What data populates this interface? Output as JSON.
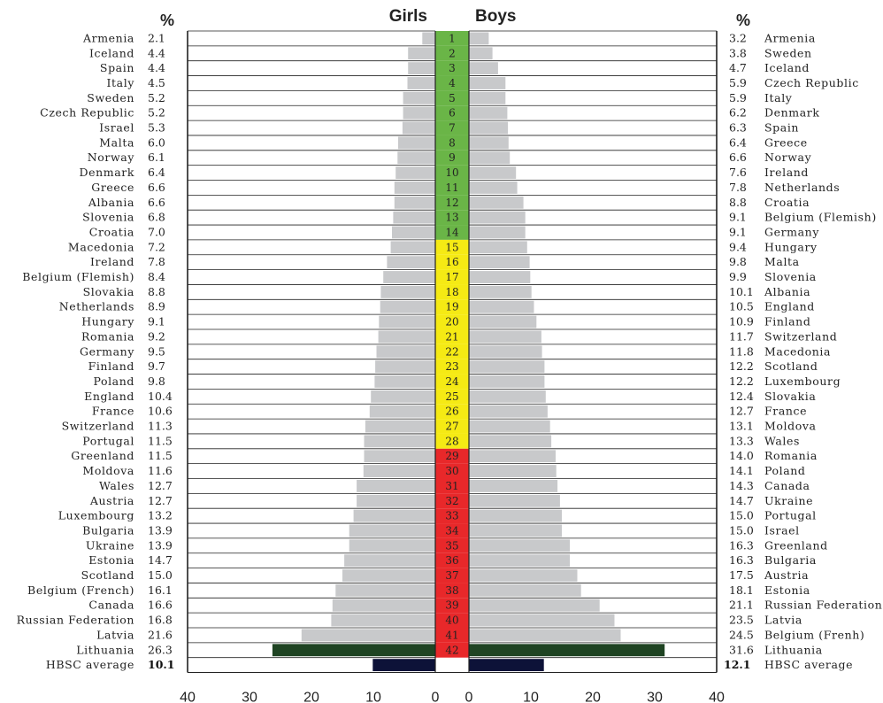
{
  "chart_data": {
    "type": "bar",
    "headers": {
      "left_unit": "%",
      "right_unit": "%",
      "girls": "Girls",
      "boys": "Boys"
    },
    "x_ticks_left": [
      "40",
      "30",
      "20",
      "10",
      "0"
    ],
    "x_ticks_right": [
      "0",
      "10",
      "20",
      "30",
      "40"
    ],
    "xlim": [
      0,
      40
    ],
    "rank_colors": {
      "green": "#6ab547",
      "yellow": "#f5ea14",
      "red": "#e8282a"
    },
    "bar_color": "#c8c9cb",
    "highlight_color": "#1f4423",
    "average_color": "#0d1238",
    "girls": {
      "countries": [
        "Armenia",
        "Iceland",
        "Spain",
        "Italy",
        "Sweden",
        "Czech Republic",
        "Israel",
        "Malta",
        "Norway",
        "Denmark",
        "Greece",
        "Albania",
        "Slovenia",
        "Croatia",
        "Macedonia",
        "Ireland",
        "Belgium (Flemish)",
        "Slovakia",
        "Netherlands",
        "Hungary",
        "Romania",
        "Germany",
        "Finland",
        "Poland",
        "England",
        "France",
        "Switzerland",
        "Portugal",
        "Greenland",
        "Moldova",
        "Wales",
        "Austria",
        "Luxembourg",
        "Bulgaria",
        "Ukraine",
        "Estonia",
        "Scotland",
        "Belgium (French)",
        "Canada",
        "Russian Federation",
        "Latvia",
        "Lithuania"
      ],
      "value_labels": [
        "2.1",
        "4.4",
        "4.4",
        "4.5",
        "5.2",
        "5.2",
        "5.3",
        "6.0",
        "6.1",
        "6.4",
        "6.6",
        "6.6",
        "6.8",
        "7.0",
        "7.2",
        "7.8",
        "8.4",
        "8.8",
        "8.9",
        "9.1",
        "9.2",
        "9.5",
        "9.7",
        "9.8",
        "10.4",
        "10.6",
        "11.3",
        "11.5",
        "11.5",
        "11.6",
        "12.7",
        "12.7",
        "13.2",
        "13.9",
        "13.9",
        "14.7",
        "15.0",
        "16.1",
        "16.6",
        "16.8",
        "21.6",
        "26.3"
      ],
      "values": [
        2.1,
        4.4,
        4.4,
        4.5,
        5.2,
        5.2,
        5.3,
        6.0,
        6.1,
        6.4,
        6.6,
        6.6,
        6.8,
        7.0,
        7.2,
        7.8,
        8.4,
        8.8,
        8.9,
        9.1,
        9.2,
        9.5,
        9.7,
        9.8,
        10.4,
        10.6,
        11.3,
        11.5,
        11.5,
        11.6,
        12.7,
        12.7,
        13.2,
        13.9,
        13.9,
        14.7,
        15.0,
        16.1,
        16.6,
        16.8,
        21.6,
        26.3
      ]
    },
    "boys": {
      "countries": [
        "Armenia",
        "Sweden",
        "Iceland",
        "Czech Republic",
        "Italy",
        "Denmark",
        "Spain",
        "Greece",
        "Norway",
        "Ireland",
        "Netherlands",
        "Croatia",
        "Belgium (Flemish)",
        "Germany",
        "Hungary",
        "Malta",
        "Slovenia",
        "Albania",
        "England",
        "Finland",
        "Switzerland",
        "Macedonia",
        "Scotland",
        "Luxembourg",
        "Slovakia",
        "France",
        "Moldova",
        "Wales",
        "Romania",
        "Poland",
        "Canada",
        "Ukraine",
        "Portugal",
        "Israel",
        "Greenland",
        "Bulgaria",
        "Austria",
        "Estonia",
        "Russian Federation",
        "Latvia",
        "Belgium (Frenh)",
        "Lithuania"
      ],
      "value_labels": [
        "3.2",
        "3.8",
        "4.7",
        "5.9",
        "5.9",
        "6.2",
        "6.3",
        "6.4",
        "6.6",
        "7.6",
        "7.8",
        "8.8",
        "9.1",
        "9.1",
        "9.4",
        "9.8",
        "9.9",
        "10.1",
        "10.5",
        "10.9",
        "11.7",
        "11.8",
        "12.2",
        "12.2",
        "12.4",
        "12.7",
        "13.1",
        "13.3",
        "14.0",
        "14.1",
        "14.3",
        "14.7",
        "15.0",
        "15.0",
        "16.3",
        "16.3",
        "17.5",
        "18.1",
        "21.1",
        "23.5",
        "24.5",
        "31.6"
      ],
      "values": [
        3.2,
        3.8,
        4.7,
        5.9,
        5.9,
        6.2,
        6.3,
        6.4,
        6.6,
        7.6,
        7.8,
        8.8,
        9.1,
        9.1,
        9.4,
        9.8,
        9.9,
        10.1,
        10.5,
        10.9,
        11.7,
        11.8,
        12.2,
        12.2,
        12.4,
        12.7,
        13.1,
        13.3,
        14.0,
        14.1,
        14.3,
        14.7,
        15.0,
        15.0,
        16.3,
        16.3,
        17.5,
        18.1,
        21.1,
        23.5,
        24.5,
        31.6
      ]
    },
    "ranks": [
      "1",
      "2",
      "3",
      "4",
      "5",
      "6",
      "7",
      "8",
      "9",
      "10",
      "11",
      "12",
      "13",
      "14",
      "15",
      "16",
      "17",
      "18",
      "19",
      "20",
      "21",
      "22",
      "23",
      "24",
      "25",
      "26",
      "27",
      "28",
      "29",
      "30",
      "31",
      "32",
      "33",
      "34",
      "35",
      "36",
      "37",
      "38",
      "39",
      "40",
      "41",
      "42"
    ],
    "average": {
      "label": "HBSC average",
      "girls_label": "10.1",
      "girls_value": 10.1,
      "boys_label": "12.1",
      "boys_value": 12.1
    }
  }
}
